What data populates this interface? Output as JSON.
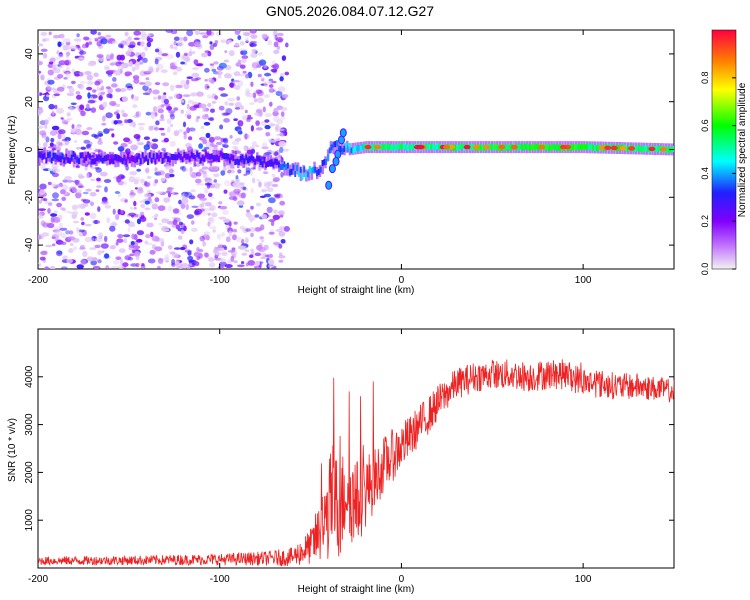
{
  "title": "GN05.2026.084.07.12.G27",
  "chart_data": [
    {
      "type": "heatmap",
      "name": "spectrogram",
      "xlabel": "Height of straight line (km)",
      "ylabel": "Frequency (Hz)",
      "xlim": [
        -200,
        150
      ],
      "ylim": [
        -50,
        50
      ],
      "xticks": [
        -200,
        -100,
        0,
        100
      ],
      "yticks": [
        -40,
        -20,
        0,
        20,
        40
      ],
      "colorbar": {
        "label": "Normalized spectral amplitude",
        "range": [
          0,
          1
        ],
        "ticks": [
          0.0,
          0.2,
          0.4,
          0.6,
          0.8
        ],
        "colors": [
          "#f2f2f2",
          "#c070ff",
          "#8000ff",
          "#2020ff",
          "#00ffff",
          "#00ff00",
          "#ffff00",
          "#ff8000",
          "#ff0040"
        ]
      },
      "ridge_track": [
        {
          "x": -200,
          "freq": -3,
          "amp": 0.35
        },
        {
          "x": -150,
          "freq": -4,
          "amp": 0.3
        },
        {
          "x": -100,
          "freq": -3,
          "amp": 0.3
        },
        {
          "x": -70,
          "freq": -6,
          "amp": 0.35
        },
        {
          "x": -55,
          "freq": -10,
          "amp": 0.45
        },
        {
          "x": -45,
          "freq": -8,
          "amp": 0.4
        },
        {
          "x": -38,
          "freq": 2,
          "amp": 0.4
        },
        {
          "x": -30,
          "freq": 0,
          "amp": 0.45
        },
        {
          "x": -20,
          "freq": 1,
          "amp": 0.55
        },
        {
          "x": 0,
          "freq": 1,
          "amp": 0.55
        },
        {
          "x": 50,
          "freq": 1,
          "amp": 0.6
        },
        {
          "x": 100,
          "freq": 1,
          "amp": 0.6
        },
        {
          "x": 150,
          "freq": 0,
          "amp": 0.55
        }
      ],
      "noise_region_x": [
        -200,
        -63
      ]
    },
    {
      "type": "line",
      "name": "snr",
      "xlabel": "Height of straight line (km)",
      "ylabel": "SNR (10 * v/v)",
      "xlim": [
        -200,
        150
      ],
      "ylim": [
        0,
        5000
      ],
      "xticks": [
        -200,
        -100,
        0,
        100
      ],
      "yticks": [
        1000,
        2000,
        3000,
        4000
      ],
      "color": "#ee2222",
      "series": [
        {
          "name": "SNR",
          "x": [
            -200,
            -150,
            -100,
            -75,
            -60,
            -50,
            -42,
            -38,
            -34,
            -30,
            -26,
            -22,
            -18,
            -14,
            -10,
            -5,
            0,
            5,
            10,
            15,
            20,
            25,
            30,
            40,
            50,
            60,
            70,
            80,
            90,
            100,
            110,
            120,
            130,
            140,
            150
          ],
          "y": [
            150,
            160,
            180,
            200,
            230,
            450,
            900,
            1500,
            1100,
            1800,
            1300,
            1500,
            1700,
            1900,
            2150,
            2350,
            2550,
            2750,
            3000,
            3200,
            3450,
            3650,
            3850,
            4000,
            4050,
            4050,
            4000,
            4050,
            4050,
            3900,
            3850,
            3800,
            3800,
            3750,
            3700
          ],
          "noise_amplitude": [
            90,
            100,
            120,
            150,
            200,
            380,
            900,
            1200,
            1100,
            1000,
            950,
            850,
            750,
            650,
            600,
            550,
            500,
            450,
            420,
            400,
            380,
            350,
            330,
            320,
            320,
            320,
            320,
            320,
            320,
            300,
            300,
            280,
            280,
            260,
            250
          ]
        }
      ]
    }
  ]
}
